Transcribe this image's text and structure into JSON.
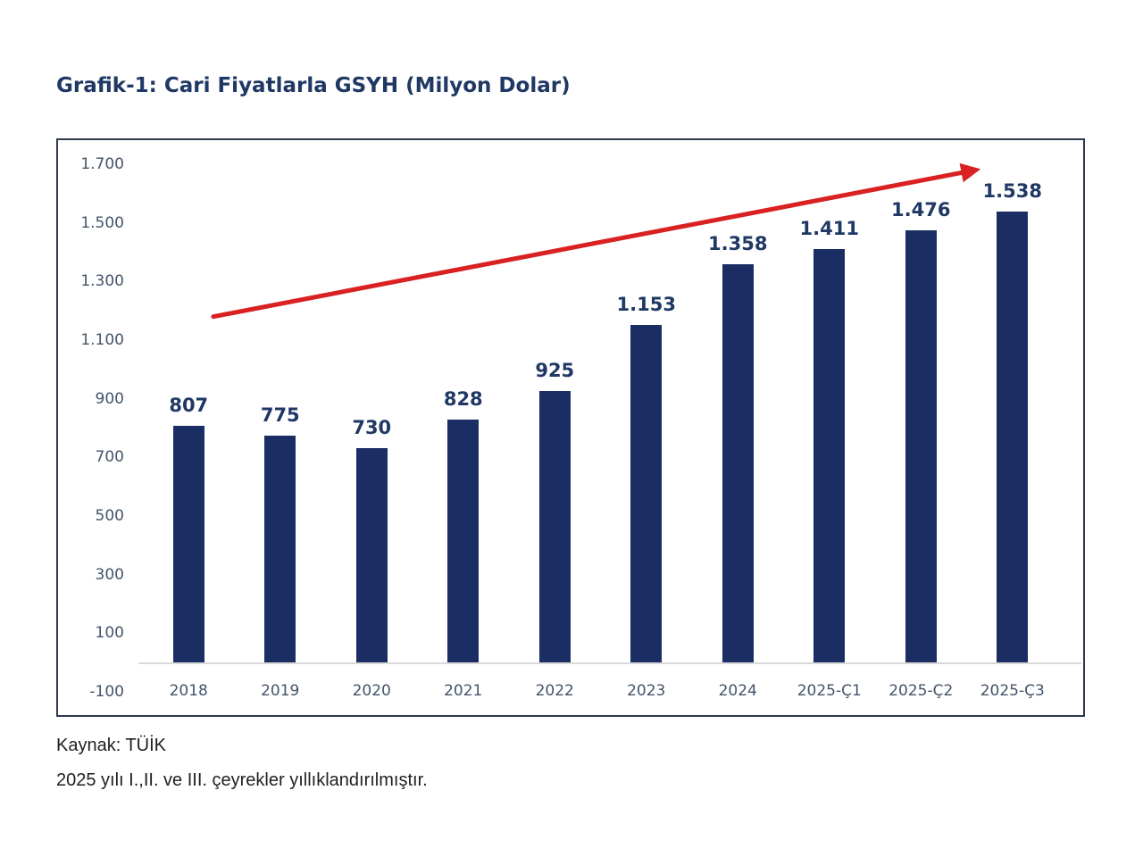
{
  "title": "Grafik-1: Cari Fiyatlarla GSYH (Milyon Dolar)",
  "footer": {
    "source": "Kaynak: TÜİK",
    "note": "2025 yılı I.,II. ve III. çeyrekler yıllıklandırılmıştır."
  },
  "chart_data": {
    "type": "bar",
    "title": "Grafik-1: Cari Fiyatlarla GSYH (Milyon Dolar)",
    "categories": [
      "2018",
      "2019",
      "2020",
      "2021",
      "2022",
      "2023",
      "2024",
      "2025-Ç1",
      "2025-Ç2",
      "2025-Ç3"
    ],
    "values": [
      807,
      775,
      730,
      828,
      925,
      1153,
      1358,
      1411,
      1476,
      1538
    ],
    "value_labels": [
      "807",
      "775",
      "730",
      "828",
      "925",
      "1.153",
      "1.358",
      "1.411",
      "1.476",
      "1.538"
    ],
    "xlabel": "",
    "ylabel": "",
    "ylim": [
      -100,
      1700
    ],
    "y_tick_step": 200,
    "grid": false,
    "legend": false,
    "y_ticks": [
      {
        "label": "1.700",
        "value": 1700
      },
      {
        "label": "1.500",
        "value": 1500
      },
      {
        "label": "1.300",
        "value": 1300
      },
      {
        "label": "1.100",
        "value": 1100
      },
      {
        "label": "900",
        "value": 900
      },
      {
        "label": "700",
        "value": 700
      },
      {
        "label": "500",
        "value": 500
      },
      {
        "label": "300",
        "value": 300
      },
      {
        "label": "100",
        "value": 100
      },
      {
        "label": "-100",
        "value": -100
      }
    ],
    "colors": {
      "bar": "#1b2e64",
      "value_label": "#1f3864",
      "tick_label": "#44546a",
      "frame_border": "#2e3a4e",
      "baseline": "#d9d9d9",
      "title": "#1f3864",
      "trend_arrow": "#d92121"
    },
    "annotations": {
      "trend_arrow": {
        "type": "arrow",
        "color": "#d92121",
        "stroke_width": 5,
        "x1_frac": 0.077,
        "y1_value": 1180,
        "x2_frac": 0.909,
        "y2_value": 1680
      }
    }
  }
}
